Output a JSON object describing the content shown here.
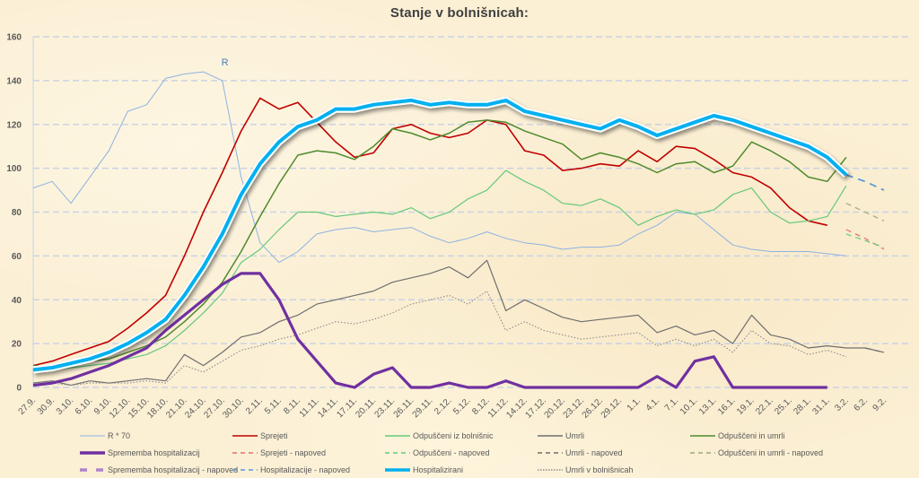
{
  "chart_data": {
    "type": "line",
    "title": "Stanje v bolnišnicah:",
    "xlabel": "",
    "ylabel": "",
    "ylim": [
      0,
      160
    ],
    "yticks": [
      0,
      20,
      40,
      60,
      80,
      100,
      120,
      140,
      160
    ],
    "grid": true,
    "legend_position": "bottom",
    "x": [
      "27.9.",
      "30.9.",
      "3.10.",
      "6.10.",
      "9.10.",
      "12.10.",
      "15.10.",
      "18.10.",
      "21.10.",
      "24.10.",
      "27.10.",
      "30.10.",
      "2.11.",
      "5.11.",
      "8.11.",
      "11.11.",
      "14.11.",
      "17.11.",
      "20.11.",
      "23.11.",
      "26.11.",
      "29.11.",
      "2.12.",
      "5.12.",
      "8.12.",
      "11.12.",
      "14.12.",
      "17.12.",
      "20.12.",
      "23.12.",
      "26.12.",
      "29.12.",
      "1.1.",
      "4.1.",
      "7.1.",
      "10.1.",
      "13.1.",
      "16.1.",
      "19.1.",
      "22.1.",
      "25.1.",
      "28.1.",
      "31.1.",
      "3.2.",
      "6.2.",
      "9.2."
    ],
    "annotations": [
      {
        "text": "R",
        "x": "24.10.",
        "y": 147
      }
    ],
    "series": [
      {
        "name": "R * 70",
        "color": "#8db3e2",
        "width": 1,
        "dash": "",
        "values": [
          91,
          94,
          84,
          96,
          108,
          126,
          129,
          141,
          143,
          144,
          140,
          96,
          66,
          57,
          62,
          70,
          72,
          73,
          71,
          72,
          73,
          69,
          66,
          68,
          71,
          68,
          66,
          65,
          63,
          64,
          64,
          65,
          70,
          74,
          80,
          79,
          72,
          65,
          63,
          62,
          62,
          62,
          61,
          60,
          null,
          null
        ]
      },
      {
        "name": "Sprejeti",
        "color": "#c00000",
        "width": 1.6,
        "dash": "",
        "values": [
          10,
          12,
          15,
          18,
          21,
          27,
          34,
          42,
          60,
          80,
          98,
          117,
          132,
          127,
          130,
          121,
          112,
          105,
          107,
          118,
          120,
          116,
          114,
          116,
          122,
          120,
          108,
          106,
          99,
          100,
          102,
          101,
          108,
          103,
          110,
          109,
          104,
          98,
          96,
          91,
          82,
          76,
          74,
          null,
          null,
          null
        ]
      },
      {
        "name": "Spremjeti - napoved",
        "color": "#e07070",
        "width": 1.2,
        "dash": "6,5",
        "values": [
          null,
          null,
          null,
          null,
          null,
          null,
          null,
          null,
          null,
          null,
          null,
          null,
          null,
          null,
          null,
          null,
          null,
          null,
          null,
          null,
          null,
          null,
          null,
          null,
          null,
          null,
          null,
          null,
          null,
          null,
          null,
          null,
          null,
          null,
          null,
          null,
          null,
          null,
          null,
          null,
          null,
          null,
          null,
          72,
          68,
          63
        ]
      },
      {
        "name": "Odpuščeni iz bolnišnic",
        "color": "#66c97a",
        "width": 1.2,
        "dash": "",
        "values": [
          8,
          8,
          9,
          10,
          11,
          13,
          15,
          19,
          26,
          34,
          43,
          57,
          63,
          72,
          80,
          80,
          78,
          79,
          80,
          79,
          82,
          77,
          80,
          86,
          90,
          99,
          94,
          90,
          84,
          83,
          86,
          82,
          74,
          78,
          81,
          79,
          81,
          88,
          91,
          80,
          75,
          76,
          78,
          92,
          null,
          null
        ]
      },
      {
        "name": "Odpuščeni - napoved",
        "color": "#66c97a",
        "width": 1.2,
        "dash": "6,5",
        "values": [
          null,
          null,
          null,
          null,
          null,
          null,
          null,
          null,
          null,
          null,
          null,
          null,
          null,
          null,
          null,
          null,
          null,
          null,
          null,
          null,
          null,
          null,
          null,
          null,
          null,
          null,
          null,
          null,
          null,
          null,
          null,
          null,
          null,
          null,
          null,
          null,
          null,
          null,
          null,
          null,
          null,
          null,
          null,
          70,
          67,
          64
        ]
      },
      {
        "name": "Umrli",
        "color": "#6e6e6e",
        "width": 1.2,
        "dash": "",
        "values": [
          2,
          3,
          1,
          3,
          2,
          3,
          4,
          3,
          15,
          10,
          16,
          23,
          25,
          30,
          33,
          38,
          40,
          42,
          44,
          48,
          50,
          52,
          55,
          50,
          58,
          35,
          40,
          36,
          32,
          30,
          31,
          32,
          33,
          25,
          28,
          24,
          26,
          20,
          33,
          24,
          22,
          18,
          19,
          18,
          18,
          16
        ]
      },
      {
        "name": "Umrli - napoved",
        "color": "#6e6e6e",
        "width": 1.2,
        "dash": "6,5",
        "values": [
          null,
          null,
          null,
          null,
          null,
          null,
          null,
          null,
          null,
          null,
          null,
          null,
          null,
          null,
          null,
          null,
          null,
          null,
          null,
          null,
          null,
          null,
          null,
          null,
          null,
          null,
          null,
          null,
          null,
          null,
          null,
          null,
          null,
          null,
          null,
          null,
          null,
          null,
          null,
          null,
          null,
          null,
          null,
          null,
          18,
          16
        ]
      },
      {
        "name": "Odpuščeni in umrli",
        "color": "#4f8a2c",
        "width": 1.5,
        "dash": "",
        "values": [
          10,
          9,
          10,
          12,
          13,
          16,
          19,
          23,
          30,
          38,
          48,
          62,
          78,
          93,
          106,
          108,
          107,
          104,
          110,
          118,
          116,
          113,
          116,
          121,
          122,
          121,
          117,
          114,
          111,
          104,
          107,
          105,
          102,
          98,
          102,
          103,
          98,
          101,
          112,
          108,
          103,
          96,
          94,
          105,
          null,
          null
        ]
      },
      {
        "name": "Odpuščeni in umrli - napoved",
        "color": "#9aaa7a",
        "width": 1.2,
        "dash": "6,5",
        "values": [
          null,
          null,
          null,
          null,
          null,
          null,
          null,
          null,
          null,
          null,
          null,
          null,
          null,
          null,
          null,
          null,
          null,
          null,
          null,
          null,
          null,
          null,
          null,
          null,
          null,
          null,
          null,
          null,
          null,
          null,
          null,
          null,
          null,
          null,
          null,
          null,
          null,
          null,
          null,
          null,
          null,
          null,
          null,
          84,
          80,
          76
        ]
      },
      {
        "name": "Umrli v bolnišnicah",
        "color": "#8c8c8c",
        "width": 1.1,
        "dash": "1.5,2",
        "values": [
          1,
          2,
          1,
          2,
          2,
          2,
          3,
          2,
          10,
          7,
          12,
          17,
          19,
          22,
          24,
          27,
          30,
          29,
          31,
          34,
          38,
          40,
          42,
          38,
          44,
          26,
          30,
          26,
          24,
          22,
          23,
          24,
          25,
          19,
          22,
          19,
          22,
          16,
          26,
          20,
          19,
          15,
          17,
          14,
          null,
          null
        ]
      },
      {
        "name": "Spremjemba hospitalizacij",
        "color": "#7030a0",
        "width": 3.2,
        "dash": "",
        "values": [
          1,
          2,
          4,
          7,
          10,
          14,
          18,
          26,
          33,
          40,
          47,
          52,
          52,
          40,
          22,
          12,
          2,
          -4,
          6,
          9,
          -2,
          -4,
          2,
          0,
          -2,
          3,
          -8,
          -6,
          -4,
          -10,
          -8,
          -6,
          -2,
          5,
          -4,
          12,
          14,
          -1,
          -6,
          -8,
          -10,
          -10,
          -10,
          null,
          null,
          null
        ]
      },
      {
        "name": "Spremjemba hospitalizacij - napoved",
        "color": "#b084cc",
        "width": 3,
        "dash": "10,10",
        "values": []
      },
      {
        "name": "Hospitalizacije - napoved",
        "color": "#5b9bd5",
        "width": 1.8,
        "dash": "8,6",
        "values": [
          null,
          null,
          null,
          null,
          null,
          null,
          null,
          null,
          null,
          null,
          null,
          null,
          null,
          null,
          null,
          null,
          null,
          null,
          null,
          null,
          null,
          null,
          null,
          null,
          null,
          null,
          null,
          null,
          null,
          null,
          null,
          null,
          null,
          null,
          null,
          null,
          null,
          null,
          null,
          null,
          null,
          null,
          null,
          97,
          94,
          90
        ]
      },
      {
        "name": "Hospitalizirani",
        "color": "#00b0f0",
        "width": 4,
        "dash": "",
        "shadow": true,
        "values": [
          8,
          9,
          11,
          13,
          16,
          20,
          25,
          31,
          42,
          55,
          70,
          88,
          102,
          112,
          119,
          122,
          127,
          127,
          129,
          130,
          131,
          129,
          130,
          129,
          129,
          131,
          126,
          124,
          122,
          120,
          118,
          122,
          119,
          115,
          118,
          121,
          124,
          122,
          119,
          116,
          113,
          110,
          105,
          97,
          null,
          null
        ]
      }
    ]
  },
  "legend": {
    "items": [
      {
        "label": "R * 70",
        "color": "#8db3e2",
        "style": "solid-thin"
      },
      {
        "label": "Sprejeti",
        "color": "#c00000",
        "style": "solid"
      },
      {
        "label": "Odpuščeni iz bolnišnic",
        "color": "#66c97a",
        "style": "solid"
      },
      {
        "label": "Umrli",
        "color": "#6e6e6e",
        "style": "solid"
      },
      {
        "label": "Odpuščeni in umrli",
        "color": "#4f8a2c",
        "style": "solid"
      },
      {
        "label": "Sprememba hospitalizacij",
        "color": "#7030a0",
        "style": "solid-thick"
      },
      {
        "label": "Sprejeti - napoved",
        "color": "#e07070",
        "style": "dashed"
      },
      {
        "label": "Odpuščeni - napoved",
        "color": "#66c97a",
        "style": "dashed"
      },
      {
        "label": "Umrli - napoved",
        "color": "#6e6e6e",
        "style": "dashed"
      },
      {
        "label": "Odpuščeni in umrli - napoved",
        "color": "#9aaa7a",
        "style": "dashed"
      },
      {
        "label": "Sprememba hospitalizacij - napoved",
        "color": "#b084cc",
        "style": "dashed-thick"
      },
      {
        "label": "Hospitalizacije - napoved",
        "color": "#5b9bd5",
        "style": "dashed"
      },
      {
        "label": "Hospitalizirani",
        "color": "#00b0f0",
        "style": "solid-thick"
      },
      {
        "label": "Umrli v bolnišnicah",
        "color": "#8c8c8c",
        "style": "dotted"
      }
    ]
  }
}
